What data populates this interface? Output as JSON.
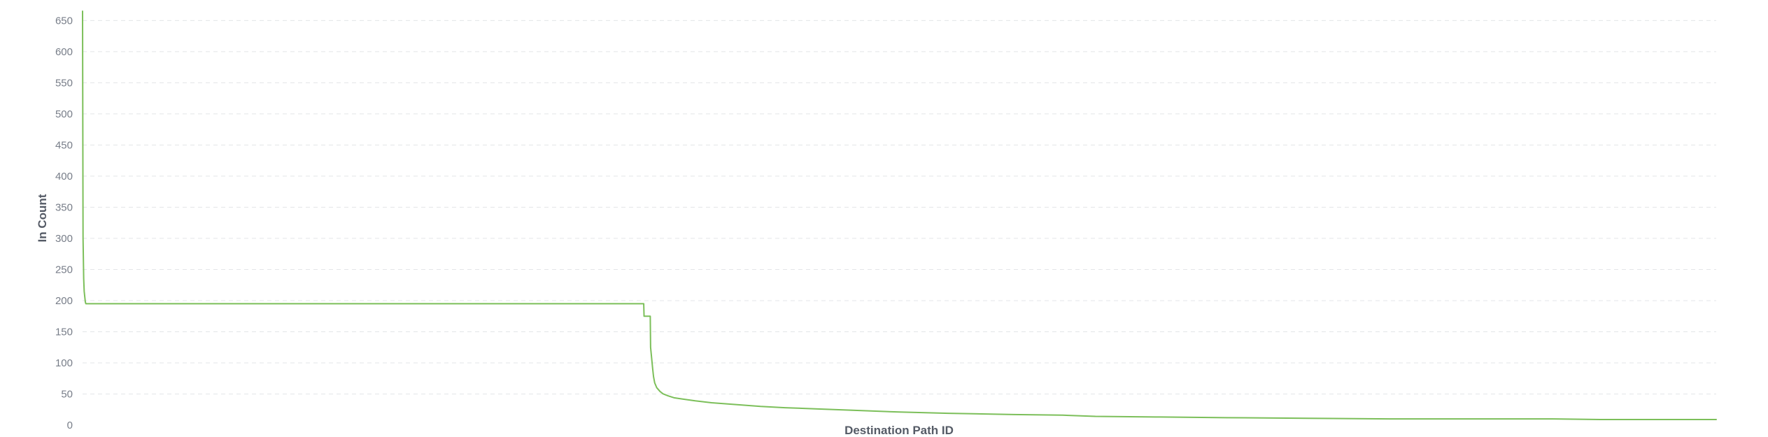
{
  "chart_data": {
    "type": "line",
    "title": "",
    "xlabel": "Destination Path ID",
    "ylabel": "In Count",
    "xlim": [
      0,
      1
    ],
    "ylim": [
      0,
      665
    ],
    "yticks": [
      0,
      50,
      100,
      150,
      200,
      250,
      300,
      350,
      400,
      450,
      500,
      550,
      600,
      650
    ],
    "grid": true,
    "legend": "none",
    "x_tick_labels_shown": false,
    "colors": {
      "series": "#7cbf5a",
      "grid": "#e3e5e8",
      "tick_text": "#777d88",
      "axis_label_text": "#555b66"
    },
    "series": [
      {
        "x": [
          0,
          0.0003,
          0.0007,
          0.001,
          0.0014,
          0.0017,
          0.002,
          0.3435,
          0.3437,
          0.3475,
          0.3477,
          0.349,
          0.3495,
          0.3502,
          0.3515,
          0.3535,
          0.3555,
          0.3585,
          0.362,
          0.367,
          0.375,
          0.385,
          0.395,
          0.405,
          0.415,
          0.43,
          0.45,
          0.47,
          0.5,
          0.53,
          0.57,
          0.6,
          0.62,
          0.66,
          0.7,
          0.75,
          0.8,
          0.85,
          0.9,
          0.93,
          0.97,
          1.0
        ],
        "y": [
          665,
          300,
          235,
          215,
          205,
          198,
          195,
          195,
          175,
          175,
          125,
          90,
          78,
          68,
          60,
          54,
          50,
          47,
          44,
          42,
          39,
          36,
          34,
          32,
          30,
          28,
          26,
          24,
          21,
          19,
          17,
          16,
          14,
          13,
          12,
          11,
          10,
          10,
          10,
          9,
          9,
          9
        ]
      }
    ]
  }
}
